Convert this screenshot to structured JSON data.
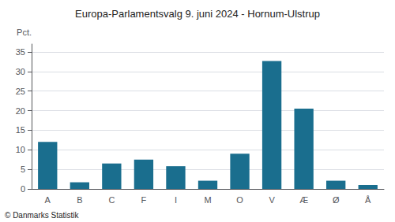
{
  "chart_data": {
    "type": "bar",
    "title": "Europa-Parlamentsvalg 9. juni 2024 - Hornum-Ulstrup",
    "ylabel": "Pct.",
    "annotations": [
      "© Danmarks Statistik"
    ],
    "categories": [
      "A",
      "B",
      "C",
      "F",
      "I",
      "M",
      "O",
      "V",
      "Æ",
      "Ø",
      "Å"
    ],
    "values": [
      12.0,
      1.7,
      6.5,
      7.5,
      5.8,
      2.1,
      9.0,
      32.7,
      20.5,
      2.1,
      1.0
    ],
    "color": "#1a6e8e",
    "ylim": [
      0,
      37
    ],
    "yticks": [
      0,
      5,
      10,
      15,
      20,
      25,
      30,
      35
    ],
    "grid": true
  }
}
